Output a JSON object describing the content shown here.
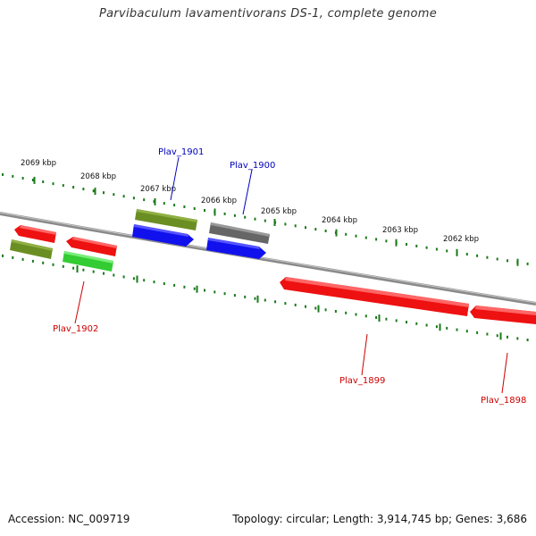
{
  "title": "Parvibaculum lavamentivorans DS-1, complete genome",
  "accession": "Accession: NC_009719",
  "info": "Topology: circular; Length: 3,914,745 bp; Genes: 3,686",
  "ruler_labels": [
    "2069 kbp",
    "2068 kbp",
    "2067 kbp",
    "2066 kbp",
    "2065 kbp",
    "2064 kbp",
    "2063 kbp",
    "2062 kbp"
  ],
  "gene_labels": [
    {
      "text": "Plav_1901",
      "strand": "forward"
    },
    {
      "text": "Plav_1900",
      "strand": "forward"
    },
    {
      "text": "Plav_1902",
      "strand": "reverse"
    },
    {
      "text": "Plav_1899",
      "strand": "reverse"
    },
    {
      "text": "Plav_1898",
      "strand": "reverse"
    }
  ],
  "colors": {
    "forward_label": "#0000bb",
    "reverse_label": "#cc0000",
    "ruler": "#1a7a1a",
    "backbone": "#8a8a8a",
    "red": "#ee1111",
    "blue": "#1111ee",
    "olive": "#6b8e23",
    "green": "#33cc33",
    "gray": "#666666"
  }
}
